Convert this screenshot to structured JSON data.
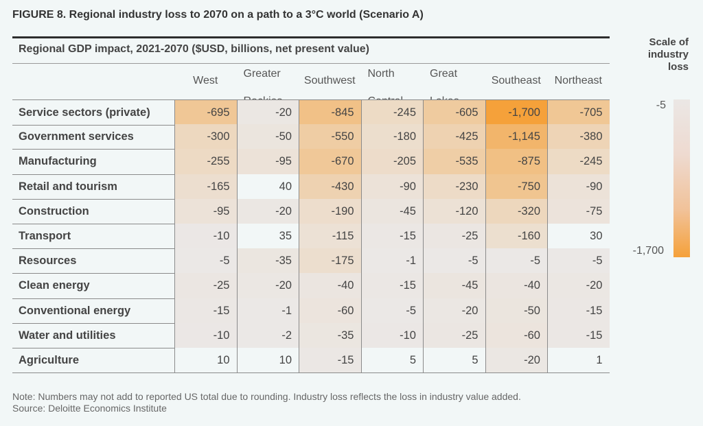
{
  "figure_title": "FIGURE 8. Regional industry loss to 2070 on a path to a 3°C world (Scenario A)",
  "chart_data": {
    "type": "heatmap",
    "title": "Regional GDP impact, 2021-2070 ($USD, billions, net present value)",
    "columns": [
      "West",
      "Greater Rockies",
      "Southwest",
      "North Central",
      "Great Lakes",
      "Southeast",
      "Northeast"
    ],
    "column_header_lines": [
      [
        "West"
      ],
      [
        "Greater",
        "Rockies"
      ],
      [
        "Southwest"
      ],
      [
        "North",
        "Central"
      ],
      [
        "Great",
        "Lakes"
      ],
      [
        "Southeast"
      ],
      [
        "Northeast"
      ]
    ],
    "rows": [
      {
        "label": "Service sectors (private)",
        "values": [
          -695,
          -20,
          -845,
          -245,
          -605,
          -1700,
          -705
        ]
      },
      {
        "label": "Government services",
        "values": [
          -300,
          -50,
          -550,
          -180,
          -425,
          -1145,
          -380
        ]
      },
      {
        "label": "Manufacturing",
        "values": [
          -255,
          -95,
          -670,
          -205,
          -535,
          -875,
          -245
        ]
      },
      {
        "label": "Retail and tourism",
        "values": [
          -165,
          40,
          -430,
          -90,
          -230,
          -750,
          -90
        ]
      },
      {
        "label": "Construction",
        "values": [
          -95,
          -20,
          -190,
          -45,
          -120,
          -320,
          -75
        ]
      },
      {
        "label": "Transport",
        "values": [
          -10,
          35,
          -115,
          -15,
          -25,
          -160,
          30
        ]
      },
      {
        "label": "Resources",
        "values": [
          -5,
          -35,
          -175,
          -1,
          -5,
          -5,
          -5
        ]
      },
      {
        "label": "Clean energy",
        "values": [
          -25,
          -20,
          -40,
          -15,
          -45,
          -40,
          -20
        ]
      },
      {
        "label": "Conventional energy",
        "values": [
          -15,
          -1,
          -60,
          -5,
          -20,
          -50,
          -15
        ]
      },
      {
        "label": "Water and utilities",
        "values": [
          -10,
          -2,
          -35,
          -10,
          -25,
          -60,
          -15
        ]
      },
      {
        "label": "Agriculture",
        "values": [
          10,
          10,
          -15,
          5,
          5,
          -20,
          1
        ]
      }
    ],
    "color_scale": {
      "title": "Scale of industry loss",
      "min_label": "-5",
      "max_label": "-1,700",
      "min_value": -5,
      "max_value": -1700,
      "low_color": "#ebe8e6",
      "high_color": "#f5a13a",
      "positive_color": "#f2f7f7"
    }
  },
  "note": "Note: Numbers may not add to reported US total due to rounding. Industry loss reflects the loss in industry value added.",
  "source": "Source: Deloitte Economics Institute"
}
